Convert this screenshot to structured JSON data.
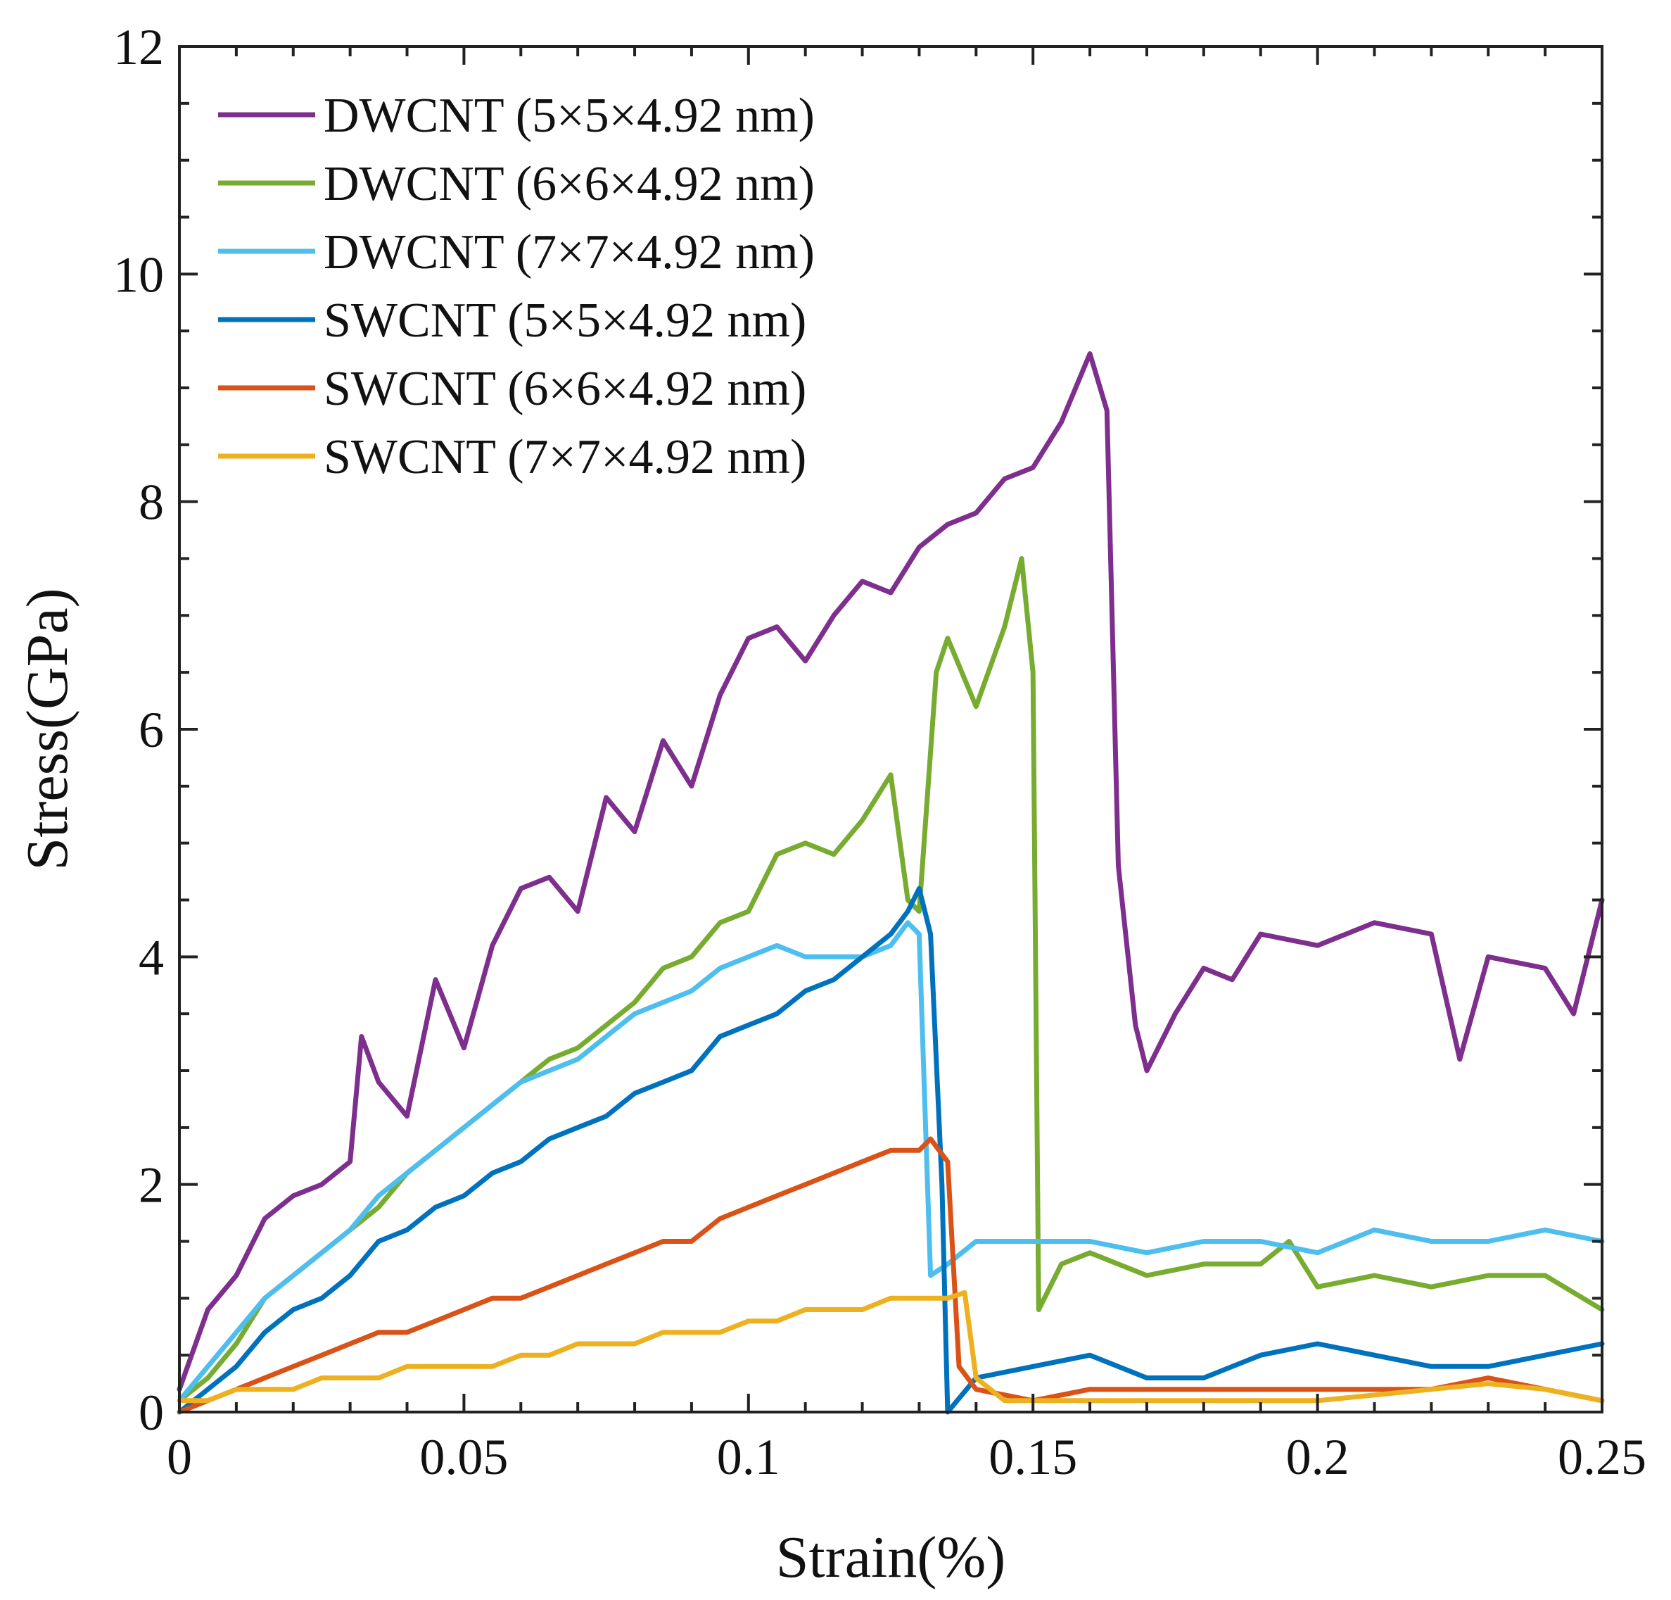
{
  "chart_data": {
    "type": "line",
    "title": "",
    "xlabel": "Strain(%)",
    "ylabel": "Stress(GPa)",
    "xlim": [
      0,
      0.25
    ],
    "ylim": [
      0,
      12
    ],
    "xticks": [
      0,
      0.05,
      0.1,
      0.15,
      0.2,
      0.25
    ],
    "xtick_labels": [
      "0",
      "0.05",
      "0.1",
      "0.15",
      "0.2",
      "0.25"
    ],
    "yticks": [
      0,
      2,
      4,
      6,
      8,
      10,
      12
    ],
    "ytick_labels": [
      "0",
      "2",
      "4",
      "6",
      "8",
      "10",
      "12"
    ],
    "grid": false,
    "legend_position": "top-left",
    "series": [
      {
        "name": "DWCNT (5×5×4.92 nm)",
        "color": "#7E2F8E",
        "x": [
          0,
          0.005,
          0.01,
          0.015,
          0.02,
          0.025,
          0.03,
          0.032,
          0.035,
          0.04,
          0.045,
          0.05,
          0.055,
          0.06,
          0.065,
          0.07,
          0.075,
          0.08,
          0.085,
          0.09,
          0.095,
          0.1,
          0.105,
          0.11,
          0.115,
          0.12,
          0.125,
          0.13,
          0.135,
          0.14,
          0.145,
          0.15,
          0.155,
          0.16,
          0.163,
          0.165,
          0.168,
          0.17,
          0.175,
          0.18,
          0.185,
          0.19,
          0.2,
          0.21,
          0.22,
          0.225,
          0.23,
          0.24,
          0.245,
          0.25
        ],
        "values": [
          0.2,
          0.9,
          1.2,
          1.7,
          1.9,
          2.0,
          2.2,
          3.3,
          2.9,
          2.6,
          3.8,
          3.2,
          4.1,
          4.6,
          4.7,
          4.4,
          5.4,
          5.1,
          5.9,
          5.5,
          6.3,
          6.8,
          6.9,
          6.6,
          7.0,
          7.3,
          7.2,
          7.6,
          7.8,
          7.9,
          8.2,
          8.3,
          8.7,
          9.3,
          8.8,
          4.8,
          3.4,
          3.0,
          3.5,
          3.9,
          3.8,
          4.2,
          4.1,
          4.3,
          4.2,
          3.1,
          4.0,
          3.9,
          3.5,
          4.5
        ]
      },
      {
        "name": "DWCNT (6×6×4.92 nm)",
        "color": "#77AC30",
        "x": [
          0,
          0.005,
          0.01,
          0.015,
          0.02,
          0.025,
          0.03,
          0.035,
          0.04,
          0.045,
          0.05,
          0.055,
          0.06,
          0.065,
          0.07,
          0.075,
          0.08,
          0.085,
          0.09,
          0.095,
          0.1,
          0.105,
          0.11,
          0.115,
          0.12,
          0.125,
          0.128,
          0.13,
          0.133,
          0.135,
          0.14,
          0.145,
          0.148,
          0.15,
          0.151,
          0.155,
          0.16,
          0.17,
          0.18,
          0.19,
          0.195,
          0.2,
          0.21,
          0.22,
          0.23,
          0.24,
          0.25
        ],
        "values": [
          0.1,
          0.3,
          0.6,
          1.0,
          1.2,
          1.4,
          1.6,
          1.8,
          2.1,
          2.3,
          2.5,
          2.7,
          2.9,
          3.1,
          3.2,
          3.4,
          3.6,
          3.9,
          4.0,
          4.3,
          4.4,
          4.9,
          5.0,
          4.9,
          5.2,
          5.6,
          4.5,
          4.4,
          6.5,
          6.8,
          6.2,
          6.9,
          7.5,
          6.5,
          0.9,
          1.3,
          1.4,
          1.2,
          1.3,
          1.3,
          1.5,
          1.1,
          1.2,
          1.1,
          1.2,
          1.2,
          0.9
        ]
      },
      {
        "name": "DWCNT (7×7×4.92 nm)",
        "color": "#4DBEEE",
        "x": [
          0,
          0.005,
          0.01,
          0.015,
          0.02,
          0.025,
          0.03,
          0.035,
          0.04,
          0.045,
          0.05,
          0.055,
          0.06,
          0.065,
          0.07,
          0.075,
          0.08,
          0.085,
          0.09,
          0.095,
          0.1,
          0.105,
          0.11,
          0.115,
          0.12,
          0.125,
          0.128,
          0.13,
          0.132,
          0.135,
          0.14,
          0.15,
          0.16,
          0.17,
          0.18,
          0.19,
          0.2,
          0.21,
          0.22,
          0.23,
          0.24,
          0.25
        ],
        "values": [
          0.1,
          0.4,
          0.7,
          1.0,
          1.2,
          1.4,
          1.6,
          1.9,
          2.1,
          2.3,
          2.5,
          2.7,
          2.9,
          3.0,
          3.1,
          3.3,
          3.5,
          3.6,
          3.7,
          3.9,
          4.0,
          4.1,
          4.0,
          4.0,
          4.0,
          4.1,
          4.3,
          4.2,
          1.2,
          1.3,
          1.5,
          1.5,
          1.5,
          1.4,
          1.5,
          1.5,
          1.4,
          1.6,
          1.5,
          1.5,
          1.6,
          1.5
        ]
      },
      {
        "name": "SWCNT (5×5×4.92 nm)",
        "color": "#0072BD",
        "x": [
          0,
          0.005,
          0.01,
          0.015,
          0.02,
          0.025,
          0.03,
          0.035,
          0.04,
          0.045,
          0.05,
          0.055,
          0.06,
          0.065,
          0.07,
          0.075,
          0.08,
          0.085,
          0.09,
          0.095,
          0.1,
          0.105,
          0.11,
          0.115,
          0.12,
          0.125,
          0.128,
          0.13,
          0.132,
          0.134,
          0.135,
          0.14,
          0.15,
          0.16,
          0.17,
          0.18,
          0.19,
          0.2,
          0.21,
          0.22,
          0.23,
          0.24,
          0.25
        ],
        "values": [
          0.0,
          0.2,
          0.4,
          0.7,
          0.9,
          1.0,
          1.2,
          1.5,
          1.6,
          1.8,
          1.9,
          2.1,
          2.2,
          2.4,
          2.5,
          2.6,
          2.8,
          2.9,
          3.0,
          3.3,
          3.4,
          3.5,
          3.7,
          3.8,
          4.0,
          4.2,
          4.4,
          4.6,
          4.2,
          2.0,
          0.0,
          0.3,
          0.4,
          0.5,
          0.3,
          0.3,
          0.5,
          0.6,
          0.5,
          0.4,
          0.4,
          0.5,
          0.6
        ]
      },
      {
        "name": "SWCNT (6×6×4.92 nm)",
        "color": "#D95319",
        "x": [
          0,
          0.005,
          0.01,
          0.015,
          0.02,
          0.025,
          0.03,
          0.035,
          0.04,
          0.045,
          0.05,
          0.055,
          0.06,
          0.065,
          0.07,
          0.075,
          0.08,
          0.085,
          0.09,
          0.095,
          0.1,
          0.105,
          0.11,
          0.115,
          0.12,
          0.125,
          0.13,
          0.132,
          0.135,
          0.137,
          0.14,
          0.15,
          0.16,
          0.17,
          0.18,
          0.19,
          0.2,
          0.21,
          0.22,
          0.23,
          0.24,
          0.25
        ],
        "values": [
          0.0,
          0.1,
          0.2,
          0.3,
          0.4,
          0.5,
          0.6,
          0.7,
          0.7,
          0.8,
          0.9,
          1.0,
          1.0,
          1.1,
          1.2,
          1.3,
          1.4,
          1.5,
          1.5,
          1.7,
          1.8,
          1.9,
          2.0,
          2.1,
          2.2,
          2.3,
          2.3,
          2.4,
          2.2,
          0.4,
          0.2,
          0.1,
          0.2,
          0.2,
          0.2,
          0.2,
          0.2,
          0.2,
          0.2,
          0.3,
          0.2,
          0.1
        ]
      },
      {
        "name": "SWCNT (7×7×4.92 nm)",
        "color": "#EDB120",
        "x": [
          0,
          0.005,
          0.01,
          0.015,
          0.02,
          0.025,
          0.03,
          0.035,
          0.04,
          0.045,
          0.05,
          0.055,
          0.06,
          0.065,
          0.07,
          0.075,
          0.08,
          0.085,
          0.09,
          0.095,
          0.1,
          0.105,
          0.11,
          0.115,
          0.12,
          0.125,
          0.13,
          0.135,
          0.138,
          0.14,
          0.145,
          0.15,
          0.16,
          0.17,
          0.18,
          0.19,
          0.2,
          0.21,
          0.22,
          0.23,
          0.24,
          0.25
        ],
        "values": [
          0.1,
          0.1,
          0.2,
          0.2,
          0.2,
          0.3,
          0.3,
          0.3,
          0.4,
          0.4,
          0.4,
          0.4,
          0.5,
          0.5,
          0.6,
          0.6,
          0.6,
          0.7,
          0.7,
          0.7,
          0.8,
          0.8,
          0.9,
          0.9,
          0.9,
          1.0,
          1.0,
          1.0,
          1.05,
          0.3,
          0.1,
          0.1,
          0.1,
          0.1,
          0.1,
          0.1,
          0.1,
          0.15,
          0.2,
          0.25,
          0.2,
          0.1
        ]
      }
    ]
  }
}
